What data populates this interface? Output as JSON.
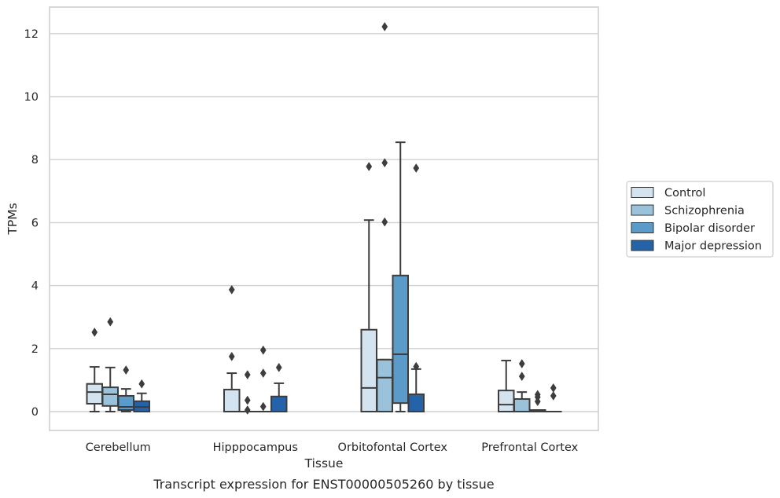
{
  "chart_data": {
    "type": "box",
    "title": "",
    "caption": "Transcript expression for ENST00000505260 by tissue",
    "xlabel": "Tissue",
    "ylabel": "TPMs",
    "ylim": [
      -0.6,
      12.8
    ],
    "yticks": [
      0,
      2,
      4,
      6,
      8,
      10,
      12
    ],
    "grid": "horizontal",
    "legend_position": "right",
    "categories": [
      "Cerebellum",
      "Hipppocampus",
      "Orbitofontal Cortex",
      "Prefrontal Cortex"
    ],
    "series": [
      {
        "name": "Control",
        "color": "#d3e3f0",
        "boxes": [
          {
            "whislo": 0.0,
            "q1": 0.25,
            "med": 0.62,
            "q3": 0.88,
            "whishi": 1.42,
            "fliers": [
              2.52
            ]
          },
          {
            "whislo": 0.0,
            "q1": 0.0,
            "med": 0.0,
            "q3": 0.7,
            "whishi": 1.22,
            "fliers": [
              3.87,
              1.75
            ]
          },
          {
            "whislo": 0.0,
            "q1": 0.0,
            "med": 0.75,
            "q3": 2.6,
            "whishi": 6.08,
            "fliers": [
              7.78
            ]
          },
          {
            "whislo": 0.0,
            "q1": 0.0,
            "med": 0.22,
            "q3": 0.67,
            "whishi": 1.62,
            "fliers": []
          }
        ]
      },
      {
        "name": "Schizophrenia",
        "color": "#9ac2db",
        "boxes": [
          {
            "whislo": 0.0,
            "q1": 0.18,
            "med": 0.55,
            "q3": 0.77,
            "whishi": 1.4,
            "fliers": [
              2.85
            ]
          },
          {
            "whislo": 0.0,
            "q1": 0.0,
            "med": 0.0,
            "q3": 0.0,
            "whishi": 0.0,
            "fliers": [
              1.17,
              0.36,
              0.05
            ]
          },
          {
            "whislo": 0.0,
            "q1": 0.0,
            "med": 1.08,
            "q3": 1.65,
            "whishi": 1.65,
            "fliers": [
              12.22,
              7.9,
              6.02
            ]
          },
          {
            "whislo": 0.0,
            "q1": 0.0,
            "med": 0.0,
            "q3": 0.4,
            "whishi": 0.62,
            "fliers": [
              1.52,
              1.12
            ]
          }
        ]
      },
      {
        "name": "Bipolar disorder",
        "color": "#5b9bc9",
        "boxes": [
          {
            "whislo": 0.0,
            "q1": 0.05,
            "med": 0.15,
            "q3": 0.5,
            "whishi": 0.72,
            "fliers": [
              1.32
            ]
          },
          {
            "whislo": 0.0,
            "q1": 0.0,
            "med": 0.0,
            "q3": 0.0,
            "whishi": 0.0,
            "fliers": [
              1.95,
              1.22,
              0.16
            ]
          },
          {
            "whislo": 0.0,
            "q1": 0.27,
            "med": 1.82,
            "q3": 4.32,
            "whishi": 8.55,
            "fliers": []
          },
          {
            "whislo": 0.0,
            "q1": 0.0,
            "med": 0.0,
            "q3": 0.05,
            "whishi": 0.05,
            "fliers": [
              0.54,
              0.46,
              0.32
            ]
          }
        ]
      },
      {
        "name": "Major depression",
        "color": "#2563a8",
        "boxes": [
          {
            "whislo": 0.0,
            "q1": 0.0,
            "med": 0.15,
            "q3": 0.33,
            "whishi": 0.58,
            "fliers": [
              0.88
            ]
          },
          {
            "whislo": 0.0,
            "q1": 0.0,
            "med": 0.0,
            "q3": 0.48,
            "whishi": 0.9,
            "fliers": [
              1.4
            ]
          },
          {
            "whislo": 0.0,
            "q1": 0.0,
            "med": 0.0,
            "q3": 0.55,
            "whishi": 1.35,
            "fliers": [
              7.73,
              1.43
            ]
          },
          {
            "whislo": 0.0,
            "q1": 0.0,
            "med": 0.0,
            "q3": 0.0,
            "whishi": 0.0,
            "fliers": [
              0.75,
              0.5
            ]
          }
        ]
      }
    ]
  }
}
